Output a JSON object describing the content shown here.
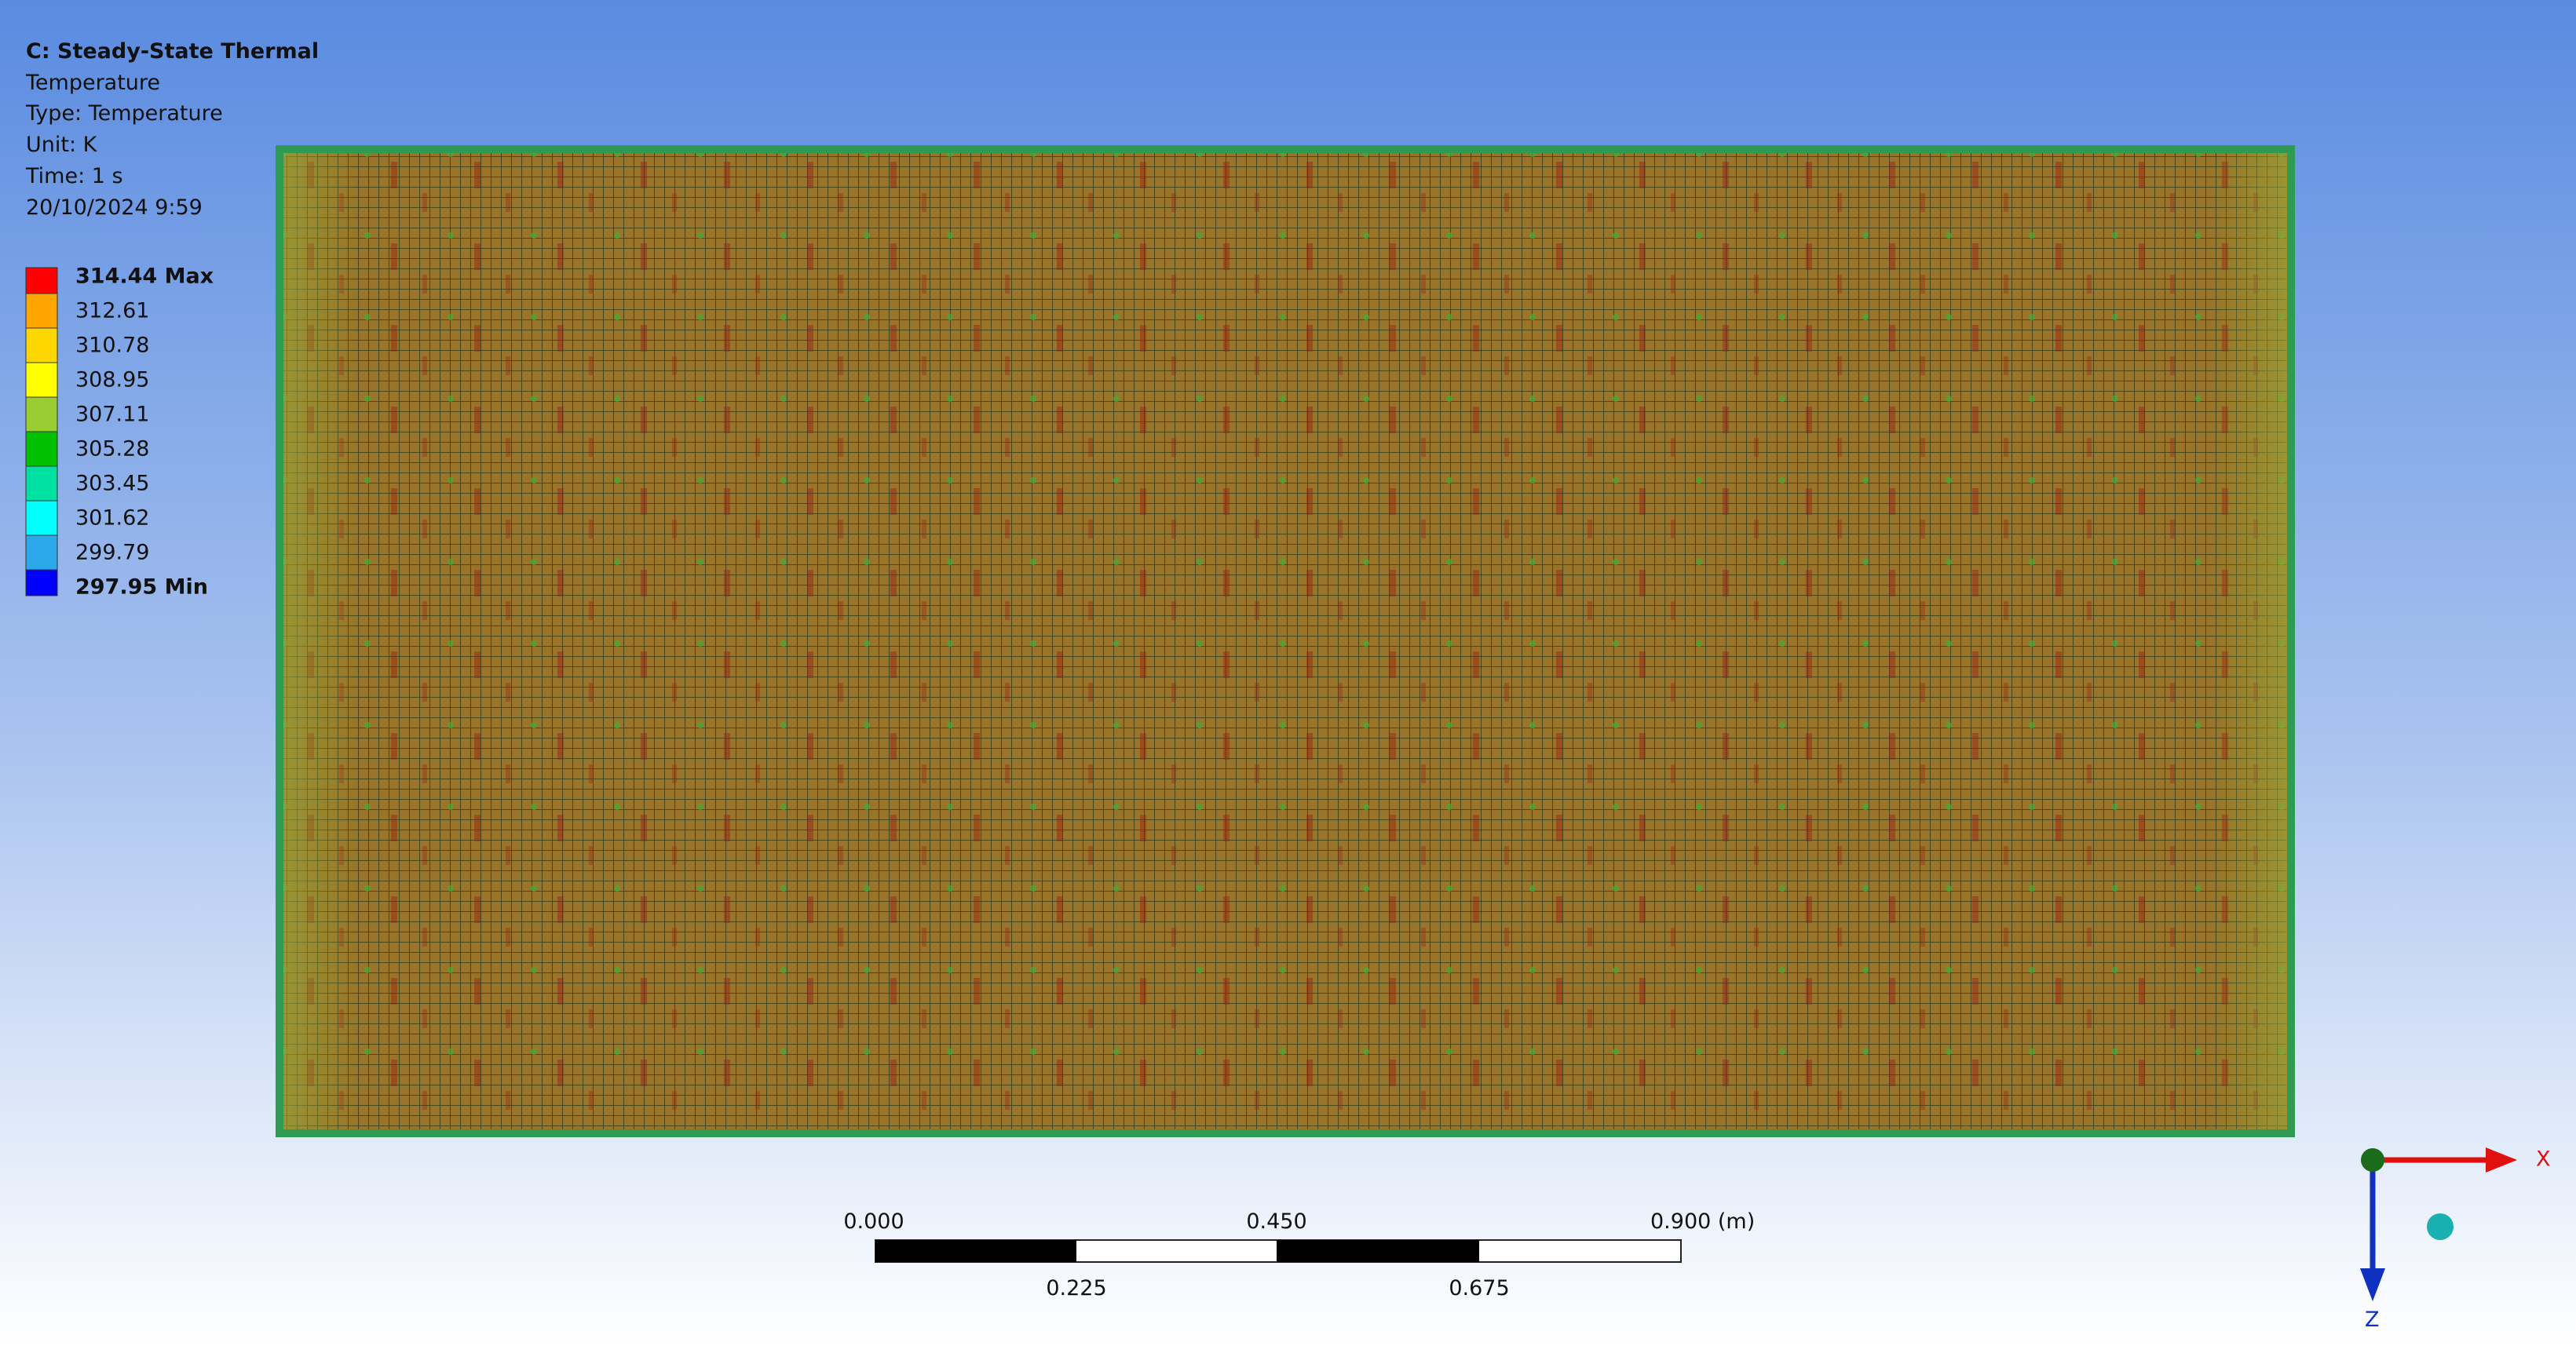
{
  "header": {
    "title": "C: Steady-State Thermal",
    "lines": [
      "Temperature",
      "Type: Temperature",
      "Unit: K",
      "Time: 1 s",
      "20/10/2024 9:59"
    ]
  },
  "legend": {
    "labels": [
      "314.44 Max",
      "312.61",
      "310.78",
      "308.95",
      "307.11",
      "305.28",
      "303.45",
      "301.62",
      "299.79",
      "297.95 Min"
    ],
    "colors": [
      "#ff0000",
      "#ffa500",
      "#ffd700",
      "#ffff00",
      "#9acd32",
      "#00c000",
      "#00e0a0",
      "#00ffff",
      "#2aa8e8",
      "#0000ff"
    ]
  },
  "scale_bar": {
    "top_labels": [
      "0.000",
      "0.450",
      "0.900 (m)"
    ],
    "bottom_labels": [
      "0.225",
      "0.675"
    ]
  },
  "triad": {
    "x_label": "X",
    "z_label": "Z"
  }
}
